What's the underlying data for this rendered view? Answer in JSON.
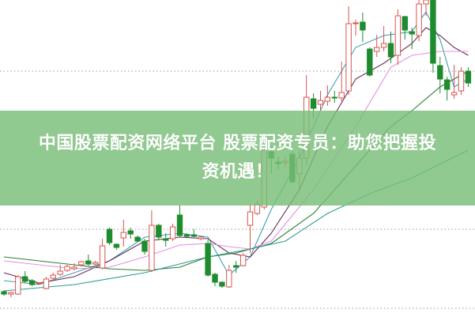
{
  "banner": {
    "line1": "中国股票配资网络平台 股票配资专员：助您把握投",
    "line2": "资机遇！"
  },
  "chart_data": {
    "type": "candlestick",
    "grid": "dotted horizontal",
    "gridlines": [
      31,
      11,
      1
    ],
    "ylim": [
      0,
      40
    ],
    "colors": {
      "up": "#d9534f",
      "down": "#1e8c2e",
      "ma_fast": "#3fa0b0",
      "ma_mid": "#6a2c5a",
      "ma_slow": "#e58fe0",
      "ma_long": "#2e7d32",
      "ma_longest": "#2a9d8f"
    },
    "candles": [
      [
        3.1,
        2.8,
        3.3,
        2.6
      ],
      [
        2.8,
        3.0,
        3.1,
        2.4
      ],
      [
        2.8,
        5.0,
        5.2,
        2.7
      ],
      [
        5.0,
        4.4,
        5.7,
        4.2
      ],
      [
        4.5,
        4.0,
        4.7,
        3.8
      ],
      [
        4.1,
        4.2,
        4.3,
        4.0
      ],
      [
        3.5,
        4.7,
        5.0,
        3.4
      ],
      [
        4.8,
        5.2,
        5.5,
        4.5
      ],
      [
        5.3,
        5.7,
        6.5,
        5.1
      ],
      [
        5.8,
        6.3,
        6.5,
        5.6
      ],
      [
        6.0,
        6.2,
        6.7,
        5.8
      ],
      [
        6.5,
        6.9,
        7.0,
        6.3
      ],
      [
        7.0,
        6.6,
        7.8,
        6.4
      ],
      [
        6.6,
        6.8,
        7.0,
        6.4
      ],
      [
        6.1,
        8.9,
        9.8,
        5.9
      ],
      [
        11.0,
        9.3,
        11.2,
        9.0
      ],
      [
        9.1,
        8.7,
        9.2,
        8.4
      ],
      [
        9.9,
        10.6,
        12.2,
        8.8
      ],
      [
        10.8,
        10.4,
        11.2,
        9.8
      ],
      [
        10.0,
        9.5,
        10.2,
        9.4
      ],
      [
        9.5,
        8.2,
        9.8,
        7.8
      ],
      [
        5.8,
        11.5,
        13.4,
        5.6
      ],
      [
        11.5,
        10.0,
        11.7,
        9.6
      ],
      [
        9.8,
        9.6,
        10.5,
        8.8
      ],
      [
        9.8,
        11.3,
        11.7,
        9.5
      ],
      [
        12.8,
        10.2,
        14.0,
        10.0
      ],
      [
        10.3,
        10.1,
        10.5,
        10.0
      ],
      [
        10.3,
        10.1,
        11.0,
        10.0
      ],
      [
        9.8,
        10.0,
        10.2,
        9.6
      ],
      [
        9.2,
        5.2,
        9.6,
        5.0
      ],
      [
        5.3,
        4.3,
        5.5,
        3.8
      ],
      [
        4.3,
        3.8,
        4.4,
        3.6
      ],
      [
        3.7,
        5.8,
        6.5,
        3.6
      ],
      [
        6.4,
        6.2,
        7.0,
        5.5
      ],
      [
        6.4,
        7.7,
        8.0,
        6.3
      ],
      [
        11.5,
        13.2,
        14.2,
        8.0
      ],
      [
        13.0,
        14.2,
        14.6,
        12.8
      ],
      [
        13.8,
        21.0,
        22.0,
        13.5
      ],
      [
        20.8,
        20.0,
        21.5,
        18.0
      ],
      [
        19.5,
        19.3,
        20.2,
        18.5
      ],
      [
        19.4,
        19.6,
        20.2,
        18.8
      ],
      [
        20.5,
        17.0,
        21.0,
        16.8
      ],
      [
        18.0,
        20.0,
        21.0,
        16.0
      ],
      [
        20.0,
        27.7,
        30.5,
        19.0
      ],
      [
        27.5,
        26.3,
        28.2,
        25.0
      ],
      [
        26.8,
        27.3,
        28.5,
        26.0
      ],
      [
        27.2,
        27.7,
        29.2,
        26.6
      ],
      [
        27.7,
        27.6,
        28.5,
        27.0
      ],
      [
        27.6,
        28.3,
        32.2,
        27.2
      ],
      [
        28.5,
        37.0,
        39.2,
        28.0
      ],
      [
        37.0,
        37.1,
        37.5,
        35.5
      ],
      [
        37.2,
        36.2,
        38.4,
        34.7
      ],
      [
        33.8,
        30.5,
        34.0,
        30.3
      ],
      [
        33.5,
        34.0,
        35.6,
        32.8
      ],
      [
        34.0,
        34.5,
        36.7,
        33.5
      ],
      [
        34.5,
        32.8,
        36.0,
        32.0
      ],
      [
        33.0,
        38.0,
        38.8,
        31.8
      ],
      [
        37.9,
        36.2,
        38.0,
        35.0
      ],
      [
        36.0,
        35.7,
        36.5,
        33.8
      ],
      [
        35.5,
        39.5,
        40.0,
        34.8
      ],
      [
        39.5,
        40.0,
        40.0,
        38.0
      ],
      [
        40.0,
        32.0,
        40.0,
        30.8
      ],
      [
        31.7,
        30.0,
        32.8,
        28.2
      ],
      [
        29.9,
        28.7,
        30.3,
        27.3
      ],
      [
        28.0,
        28.3,
        31.8,
        27.5
      ],
      [
        28.5,
        31.0,
        31.5,
        28.0
      ],
      [
        31.0,
        29.5,
        31.5,
        29.0
      ]
    ],
    "moving_averages": [
      {
        "key": "ma_fast",
        "points": [
          [
            0,
            4.5
          ],
          [
            5,
            4.0
          ],
          [
            10,
            5.5
          ],
          [
            15,
            7.0
          ],
          [
            20,
            10.0
          ],
          [
            25,
            10.5
          ],
          [
            29,
            10.0
          ],
          [
            32,
            5.2
          ],
          [
            35,
            7.5
          ],
          [
            38,
            13.5
          ],
          [
            42,
            20.0
          ],
          [
            46,
            28.0
          ],
          [
            50,
            34.0
          ],
          [
            54,
            35.5
          ],
          [
            58,
            36.0
          ],
          [
            60,
            38.5
          ],
          [
            62,
            35.0
          ],
          [
            64,
            29.0
          ],
          [
            66,
            30.0
          ]
        ]
      },
      {
        "key": "ma_mid",
        "points": [
          [
            0,
            5.5
          ],
          [
            5,
            4.2
          ],
          [
            10,
            5.0
          ],
          [
            15,
            7.0
          ],
          [
            20,
            9.5
          ],
          [
            25,
            10.0
          ],
          [
            29,
            9.8
          ],
          [
            32,
            8.0
          ],
          [
            35,
            7.5
          ],
          [
            38,
            10.5
          ],
          [
            42,
            16.0
          ],
          [
            46,
            24.0
          ],
          [
            50,
            30.0
          ],
          [
            54,
            32.0
          ],
          [
            58,
            34.5
          ],
          [
            60,
            36.5
          ],
          [
            62,
            35.5
          ],
          [
            64,
            34.0
          ],
          [
            66,
            33.0
          ]
        ]
      },
      {
        "key": "ma_slow",
        "points": [
          [
            0,
            7.0
          ],
          [
            10,
            6.0
          ],
          [
            15,
            6.2
          ],
          [
            20,
            7.5
          ],
          [
            25,
            9.0
          ],
          [
            29,
            9.2
          ],
          [
            32,
            8.8
          ],
          [
            35,
            8.5
          ],
          [
            38,
            9.5
          ],
          [
            44,
            16.0
          ],
          [
            50,
            24.0
          ],
          [
            55,
            31.5
          ],
          [
            58,
            33.0
          ],
          [
            62,
            33.5
          ],
          [
            66,
            33.5
          ]
        ]
      },
      {
        "key": "ma_long",
        "points": [
          [
            0,
            7.5
          ],
          [
            10,
            6.5
          ],
          [
            15,
            6.0
          ],
          [
            20,
            5.8
          ],
          [
            25,
            6.2
          ],
          [
            29,
            7.5
          ],
          [
            33,
            8.0
          ],
          [
            38,
            9.2
          ],
          [
            44,
            13.0
          ],
          [
            50,
            19.0
          ],
          [
            55,
            24.0
          ],
          [
            58,
            26.0
          ],
          [
            62,
            29.0
          ],
          [
            66,
            31.0
          ]
        ]
      },
      {
        "key": "ma_longest",
        "points": [
          [
            0,
            3.2
          ],
          [
            10,
            4.0
          ],
          [
            20,
            5.5
          ],
          [
            29,
            7.5
          ],
          [
            35,
            8.5
          ],
          [
            40,
            9.5
          ],
          [
            46,
            13.0
          ],
          [
            52,
            15.5
          ],
          [
            58,
            17.5
          ],
          [
            66,
            21.0
          ]
        ]
      }
    ]
  }
}
